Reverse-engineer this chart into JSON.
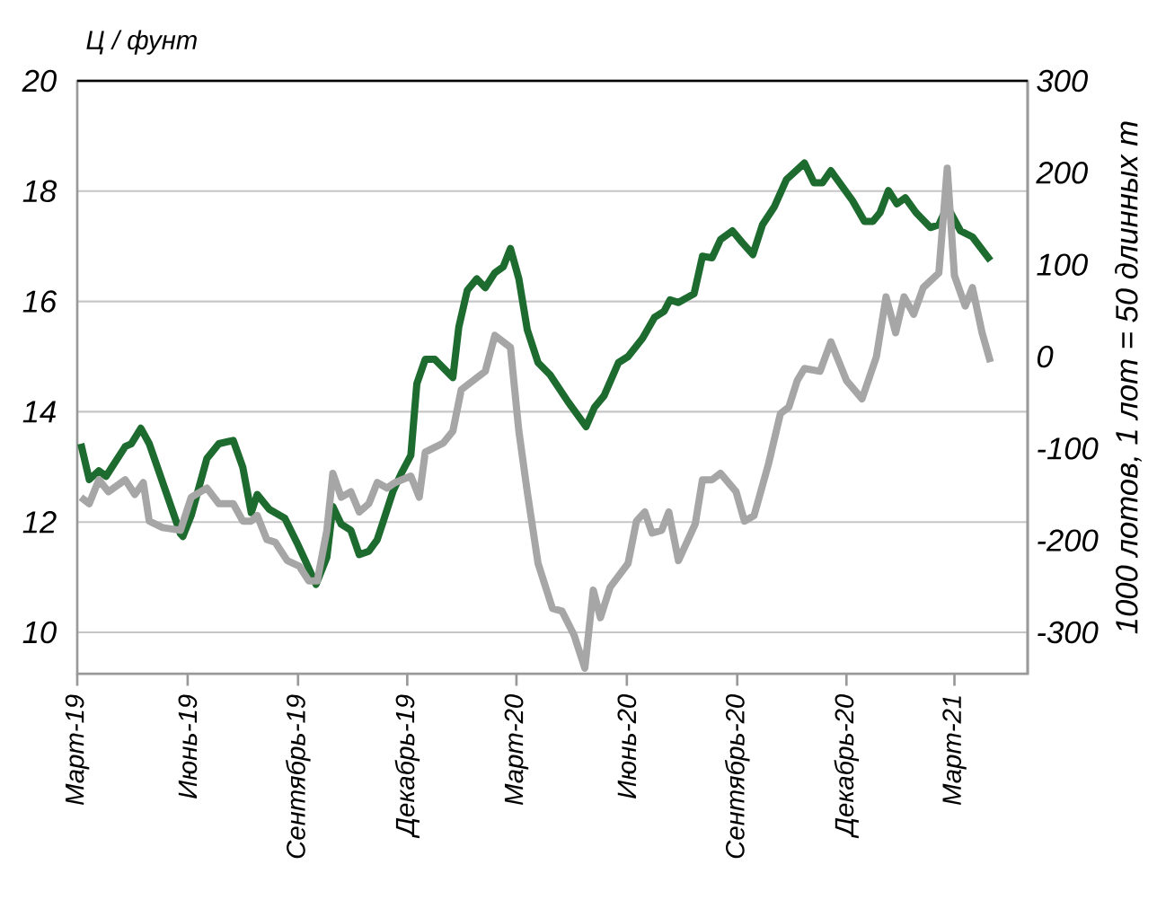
{
  "chart_data": {
    "type": "line",
    "ylabel": "Ц / фунт",
    "y2label": "1000 лотов, 1 лот = 50 длинных т",
    "xlim": [
      "2019-03-01",
      "2021-05-01"
    ],
    "xticks": [
      {
        "value": "2019-03-01",
        "label": "Март-19"
      },
      {
        "value": "2019-06-01",
        "label": "Июнь-19"
      },
      {
        "value": "2019-09-01",
        "label": "Сентябрь-19"
      },
      {
        "value": "2019-12-01",
        "label": "Декабрь-19"
      },
      {
        "value": "2020-03-01",
        "label": "Март-20"
      },
      {
        "value": "2020-06-01",
        "label": "Июнь-20"
      },
      {
        "value": "2020-09-01",
        "label": "Сентябрь-20"
      },
      {
        "value": "2020-12-01",
        "label": "Декабрь-20"
      },
      {
        "value": "2021-03-01",
        "label": "Март-21"
      }
    ],
    "ylim": [
      9.25,
      20
    ],
    "yticks": [
      10,
      12,
      14,
      16,
      18,
      20
    ],
    "y2lim": [
      -345,
      300
    ],
    "y2ticks": [
      -300,
      -200,
      -100,
      0,
      100,
      200,
      300
    ],
    "grid": "y",
    "series": [
      {
        "color": "#1e6b30",
        "x": [
          "2019-03-04",
          "2019-03-11",
          "2019-03-19",
          "2019-03-25",
          "2019-04-10",
          "2019-04-15",
          "2019-04-23",
          "2019-04-30",
          "2019-05-26",
          "2019-05-28",
          "2019-06-04",
          "2019-06-17",
          "2019-06-27",
          "2019-07-09",
          "2019-07-17",
          "2019-07-24",
          "2019-07-29",
          "2019-08-08",
          "2019-08-21",
          "2019-08-31",
          "2019-09-07",
          "2019-09-16",
          "2019-09-25",
          "2019-09-30",
          "2019-10-07",
          "2019-10-15",
          "2019-10-22",
          "2019-10-30",
          "2019-11-06",
          "2019-11-11",
          "2019-11-19",
          "2019-11-26",
          "2019-12-04",
          "2019-12-09",
          "2019-12-16",
          "2019-12-24",
          "2020-01-08",
          "2020-01-13",
          "2020-01-20",
          "2020-01-28",
          "2020-02-04",
          "2020-02-12",
          "2020-02-19",
          "2020-02-25",
          "2020-03-03",
          "2020-03-10",
          "2020-03-19",
          "2020-03-29",
          "2020-04-13",
          "2020-04-28",
          "2020-05-05",
          "2020-05-13",
          "2020-05-25",
          "2020-06-02",
          "2020-06-14",
          "2020-06-24",
          "2020-07-02",
          "2020-07-07",
          "2020-07-14",
          "2020-07-27",
          "2020-08-03",
          "2020-08-11",
          "2020-08-18",
          "2020-08-28",
          "2020-09-05",
          "2020-09-14",
          "2020-09-22",
          "2020-10-02",
          "2020-10-12",
          "2020-10-27",
          "2020-11-04",
          "2020-11-11",
          "2020-11-18",
          "2020-12-06",
          "2020-12-16",
          "2020-12-23",
          "2020-12-29",
          "2021-01-05",
          "2021-01-12",
          "2021-01-19",
          "2021-01-28",
          "2021-02-09",
          "2021-02-16",
          "2021-02-23",
          "2021-03-06",
          "2021-03-16",
          "2021-03-31"
        ],
        "values": [
          13.42,
          12.77,
          12.93,
          12.83,
          13.37,
          13.42,
          13.7,
          13.42,
          11.79,
          11.74,
          12.12,
          13.15,
          13.42,
          13.48,
          12.99,
          12.17,
          12.5,
          12.23,
          12.07,
          11.63,
          11.3,
          10.87,
          11.36,
          12.28,
          11.96,
          11.85,
          11.41,
          11.47,
          11.68,
          12.01,
          12.55,
          12.88,
          13.21,
          14.51,
          14.95,
          14.95,
          14.62,
          15.54,
          16.2,
          16.41,
          16.25,
          16.52,
          16.63,
          16.96,
          16.41,
          15.49,
          14.89,
          14.67,
          14.18,
          13.73,
          14.08,
          14.29,
          14.89,
          15.0,
          15.33,
          15.71,
          15.82,
          16.03,
          15.98,
          16.14,
          16.82,
          16.79,
          17.12,
          17.28,
          17.07,
          16.85,
          17.39,
          17.72,
          18.21,
          18.51,
          18.15,
          18.15,
          18.37,
          17.83,
          17.45,
          17.45,
          17.61,
          18.01,
          17.77,
          17.88,
          17.61,
          17.34,
          17.39,
          17.72,
          17.28,
          17.17,
          16.74
        ]
      },
      {
        "color": "#a6a6a6",
        "axis": "y2",
        "x": [
          "2019-03-04",
          "2019-03-11",
          "2019-03-19",
          "2019-03-27",
          "2019-04-10",
          "2019-04-18",
          "2019-04-25",
          "2019-04-30",
          "2019-05-11",
          "2019-05-26",
          "2019-06-04",
          "2019-06-17",
          "2019-06-27",
          "2019-07-09",
          "2019-07-17",
          "2019-07-24",
          "2019-07-29",
          "2019-08-06",
          "2019-08-13",
          "2019-08-23",
          "2019-09-02",
          "2019-09-10",
          "2019-09-17",
          "2019-09-25",
          "2019-09-30",
          "2019-10-07",
          "2019-10-15",
          "2019-10-22",
          "2019-10-30",
          "2019-11-06",
          "2019-11-14",
          "2019-11-21",
          "2019-12-04",
          "2019-12-11",
          "2019-12-16",
          "2019-12-31",
          "2020-01-08",
          "2020-01-15",
          "2020-01-25",
          "2020-02-04",
          "2020-02-12",
          "2020-02-25",
          "2020-03-03",
          "2020-03-10",
          "2020-03-19",
          "2020-03-31",
          "2020-04-08",
          "2020-04-18",
          "2020-04-27",
          "2020-05-04",
          "2020-05-10",
          "2020-05-18",
          "2020-06-02",
          "2020-06-09",
          "2020-06-16",
          "2020-06-22",
          "2020-06-30",
          "2020-07-06",
          "2020-07-14",
          "2020-07-28",
          "2020-08-03",
          "2020-08-11",
          "2020-08-18",
          "2020-08-31",
          "2020-09-07",
          "2020-09-15",
          "2020-09-27",
          "2020-10-07",
          "2020-10-14",
          "2020-10-21",
          "2020-10-27",
          "2020-11-09",
          "2020-11-18",
          "2020-12-01",
          "2020-12-14",
          "2020-12-26",
          "2021-01-03",
          "2021-01-11",
          "2021-01-18",
          "2021-01-26",
          "2021-02-03",
          "2021-02-16",
          "2021-02-23",
          "2021-03-01",
          "2021-03-10",
          "2021-03-16",
          "2021-03-24",
          "2021-03-31"
        ],
        "values": [
          -153,
          -160,
          -134,
          -147,
          -134,
          -150,
          -137,
          -179,
          -186,
          -189,
          -153,
          -143,
          -160,
          -160,
          -179,
          -179,
          -173,
          -199,
          -202,
          -222,
          -228,
          -244,
          -244,
          -189,
          -127,
          -153,
          -147,
          -169,
          -160,
          -137,
          -143,
          -137,
          -130,
          -153,
          -104,
          -94,
          -81,
          -36,
          -26,
          -16,
          23,
          10,
          -81,
          -147,
          -225,
          -274,
          -277,
          -303,
          -339,
          -254,
          -284,
          -251,
          -225,
          -179,
          -169,
          -192,
          -189,
          -169,
          -222,
          -182,
          -134,
          -134,
          -127,
          -147,
          -179,
          -173,
          -117,
          -62,
          -55,
          -26,
          -13,
          -16,
          16,
          -26,
          -46,
          0,
          65,
          26,
          65,
          46,
          75,
          91,
          205,
          88,
          55,
          75,
          26,
          -6
        ]
      }
    ]
  }
}
